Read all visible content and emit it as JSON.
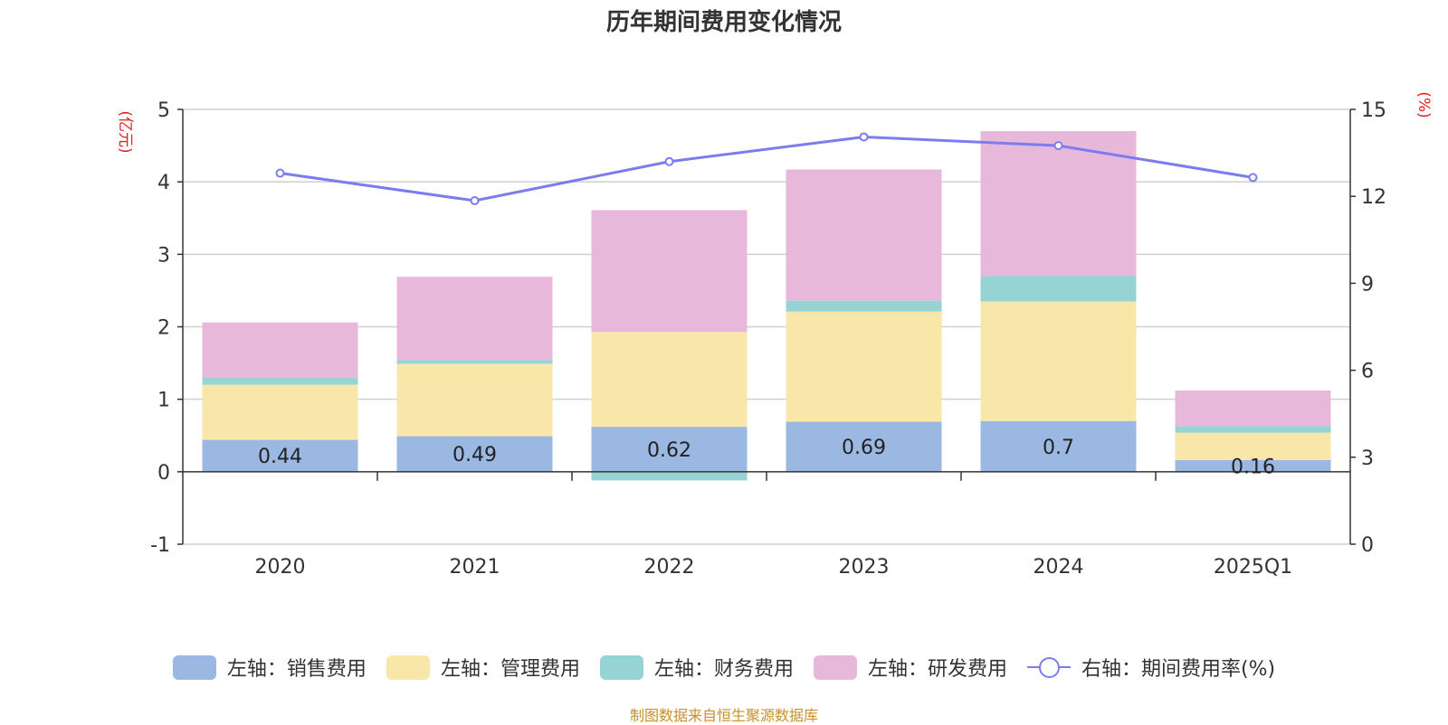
{
  "chart_data": {
    "type": "bar",
    "title": "历年期间费用变化情况",
    "categories": [
      "2020",
      "2021",
      "2022",
      "2023",
      "2024",
      "2025Q1"
    ],
    "y_left": {
      "label": "(亿元)",
      "ylim": [
        -1,
        5
      ],
      "ticks": [
        "-1",
        "0",
        "1",
        "2",
        "3",
        "4",
        "5"
      ]
    },
    "y_right": {
      "label": "(%)",
      "ylim": [
        0,
        15
      ],
      "ticks": [
        "0",
        "3",
        "6",
        "9",
        "12",
        "15"
      ]
    },
    "series": [
      {
        "name": "左轴：销售费用",
        "type": "bar",
        "axis": "left",
        "color": "#9bb8e2",
        "values": [
          0.44,
          0.49,
          0.62,
          0.69,
          0.7,
          0.16
        ],
        "labels": [
          "0.44",
          "0.49",
          "0.62",
          "0.69",
          "0.7",
          "0.16"
        ]
      },
      {
        "name": "左轴：管理费用",
        "type": "bar",
        "axis": "left",
        "color": "#f8e7a8",
        "values": [
          0.76,
          1.0,
          1.31,
          1.52,
          1.65,
          0.38
        ]
      },
      {
        "name": "左轴：财务费用",
        "type": "bar",
        "axis": "left",
        "color": "#96d3d5",
        "values": [
          0.1,
          0.05,
          -0.12,
          0.15,
          0.35,
          0.09
        ]
      },
      {
        "name": "左轴：研发费用",
        "type": "bar",
        "axis": "left",
        "color": "#e7b8d9",
        "values": [
          0.76,
          1.15,
          1.68,
          1.81,
          2.0,
          0.49
        ]
      },
      {
        "name": "右轴：期间费用率(%)",
        "type": "line",
        "axis": "right",
        "color": "#7b7cf0",
        "values": [
          12.8,
          11.85,
          13.2,
          14.05,
          13.75,
          12.65
        ]
      }
    ],
    "grid": true,
    "legend_position": "bottom"
  },
  "footer": "制图数据来自恒生聚源数据库"
}
